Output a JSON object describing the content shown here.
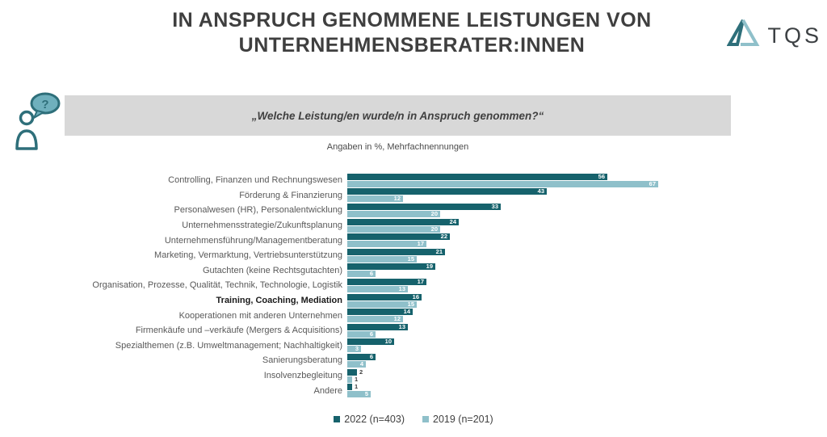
{
  "title": {
    "line1": "IN ANSPRUCH GENOMMENE LEISTUNGEN VON",
    "line2": "UNTERNEHMENSBERATER:INNEN"
  },
  "logo": {
    "text": "TQS"
  },
  "question": {
    "text": "„Welche Leistung/en wurde/n in Anspruch genommen?“"
  },
  "note": "Angaben in %, Mehrfachnennungen",
  "colors": {
    "series_2022": "#16626C",
    "series_2019": "#8FC0CA",
    "banner_bg": "#D8D8D8",
    "title_text": "#3F3F3F",
    "label_text": "#595959"
  },
  "chart_data": {
    "type": "bar",
    "orientation": "horizontal",
    "title": "In Anspruch genommene Leistungen von Unternehmensberater:innen",
    "xlabel": "Angaben in %, Mehrfachnennungen",
    "xlim": [
      0,
      70
    ],
    "categories": [
      "Controlling, Finanzen und Rechnungswesen",
      "Förderung & Finanzierung",
      "Personalwesen (HR), Personalentwicklung",
      "Unternehmensstrategie/Zukunftsplanung",
      "Unternehmensführung/Managementberatung",
      "Marketing, Vermarktung, Vertriebsunterstützung",
      "Gutachten (keine Rechtsgutachten)",
      "Organisation, Prozesse, Qualität, Technik, Technologie, Logistik",
      "Training, Coaching, Mediation",
      "Kooperationen mit anderen Unternehmen",
      "Firmenkäufe und –verkäufe (Mergers & Acquisitions)",
      "Spezialthemen (z.B. Umweltmanagement; Nachhaltigkeit)",
      "Sanierungsberatung",
      "Insolvenzbegleitung",
      "Andere"
    ],
    "bold_category_index": 8,
    "series": [
      {
        "name": "2022 (n=403)",
        "color": "#16626C",
        "values": [
          56,
          43,
          33,
          24,
          22,
          21,
          19,
          17,
          16,
          14,
          13,
          10,
          6,
          2,
          1
        ]
      },
      {
        "name": "2019 (n=201)",
        "color": "#8FC0CA",
        "values": [
          67,
          12,
          20,
          20,
          17,
          15,
          6,
          13,
          15,
          12,
          6,
          3,
          4,
          1,
          5
        ]
      }
    ],
    "legend_position": "bottom"
  }
}
